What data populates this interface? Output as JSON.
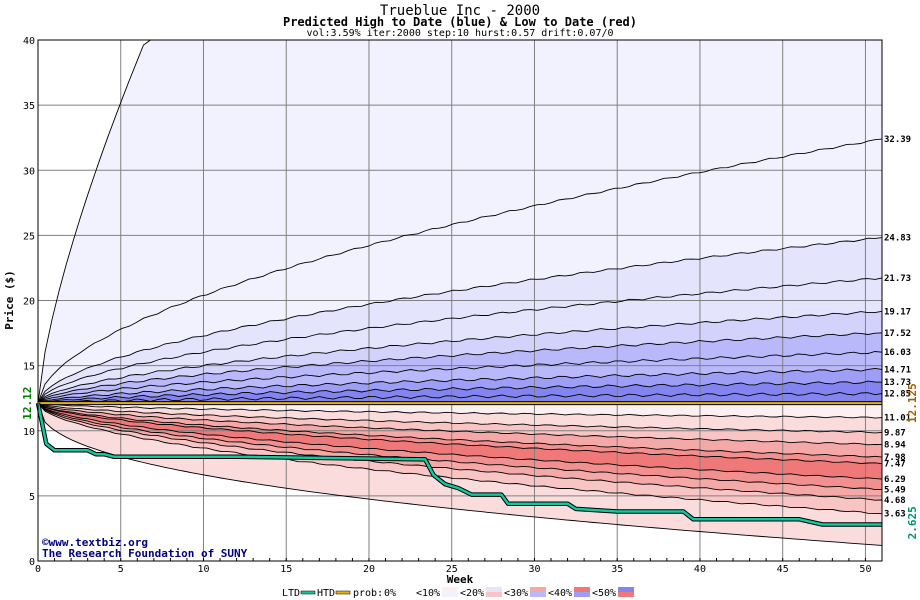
{
  "header": {
    "title": "Trueblue Inc - 2000",
    "subtitle": "Predicted High to Date (blue) &  Low to Date (red)",
    "params": "vol:3.59% iter:2000 step:10 hurst:0.57 drift:0.07/0"
  },
  "watermark": {
    "site": "©www.textbiz.org",
    "org": "The Research Foundation of SUNY"
  },
  "legend": {
    "ltd": "LTD",
    "htd": "HTD",
    "prob": "prob:",
    "bands": [
      "0%",
      "<10%",
      "<20%",
      "<30%",
      "<40%",
      "<50%"
    ]
  },
  "colors": {
    "htd_line": "#12c8a0",
    "start_line": "#e6b400",
    "start_text": "#008000",
    "end_price_text": "#a06000",
    "end_low_text": "#009070",
    "blue_bands": [
      "#f2f2fe",
      "#e4e4fd",
      "#d2d2fc",
      "#b8b8fa",
      "#9e9ef6",
      "#8484f0"
    ],
    "red_bands": [
      "#fdf0f0",
      "#fbdcdc",
      "#f9c4c4",
      "#f5a8a8",
      "#f29090",
      "#ef7878"
    ]
  },
  "chart_data": {
    "type": "area",
    "xlabel": "Week",
    "ylabel": "Price ($)",
    "xlim": [
      0,
      51
    ],
    "ylim": [
      0,
      40
    ],
    "xticks": [
      0,
      5,
      10,
      15,
      20,
      25,
      30,
      35,
      40,
      45,
      50
    ],
    "yticks": [
      0,
      5,
      10,
      15,
      20,
      25,
      30,
      35,
      40
    ],
    "grid": true,
    "start_price": 12.12,
    "start_label": "12.12",
    "current_price": 12.125,
    "current_label": "12.125",
    "current_low": 2.625,
    "current_low_label": "2.625",
    "high_percentile_curves_end": [
      40,
      32.39,
      24.83,
      21.73,
      19.17,
      17.52,
      16.03,
      14.71,
      13.73,
      12.85
    ],
    "low_percentile_curves_end": [
      11.01,
      9.87,
      8.94,
      7.98,
      7.47,
      6.29,
      5.49,
      4.68,
      3.63,
      1.2
    ],
    "right_labels": [
      "32.39",
      "24.83",
      "21.73",
      "19.17",
      "17.52",
      "16.03",
      "14.71",
      "13.73",
      "12.85",
      "11.01",
      "9.87",
      "8.94",
      "7.98",
      "7.47",
      "6.29",
      "5.49",
      "4.68",
      "3.63"
    ],
    "low_to_date": [
      [
        0,
        12.12
      ],
      [
        0.5,
        9.0
      ],
      [
        1,
        8.5
      ],
      [
        3,
        8.5
      ],
      [
        3.5,
        8.2
      ],
      [
        4,
        8.2
      ],
      [
        4.6,
        8.0
      ],
      [
        12,
        8.0
      ],
      [
        23.4,
        7.8
      ],
      [
        23.9,
        6.6
      ],
      [
        24.6,
        5.9
      ],
      [
        25.4,
        5.6
      ],
      [
        26.2,
        5.1
      ],
      [
        28,
        5.1
      ],
      [
        28.4,
        4.4
      ],
      [
        32,
        4.4
      ],
      [
        32.5,
        4.0
      ],
      [
        35,
        3.8
      ],
      [
        39,
        3.8
      ],
      [
        39.6,
        3.2
      ],
      [
        46,
        3.2
      ],
      [
        47.4,
        2.8
      ],
      [
        51,
        2.8
      ]
    ]
  }
}
